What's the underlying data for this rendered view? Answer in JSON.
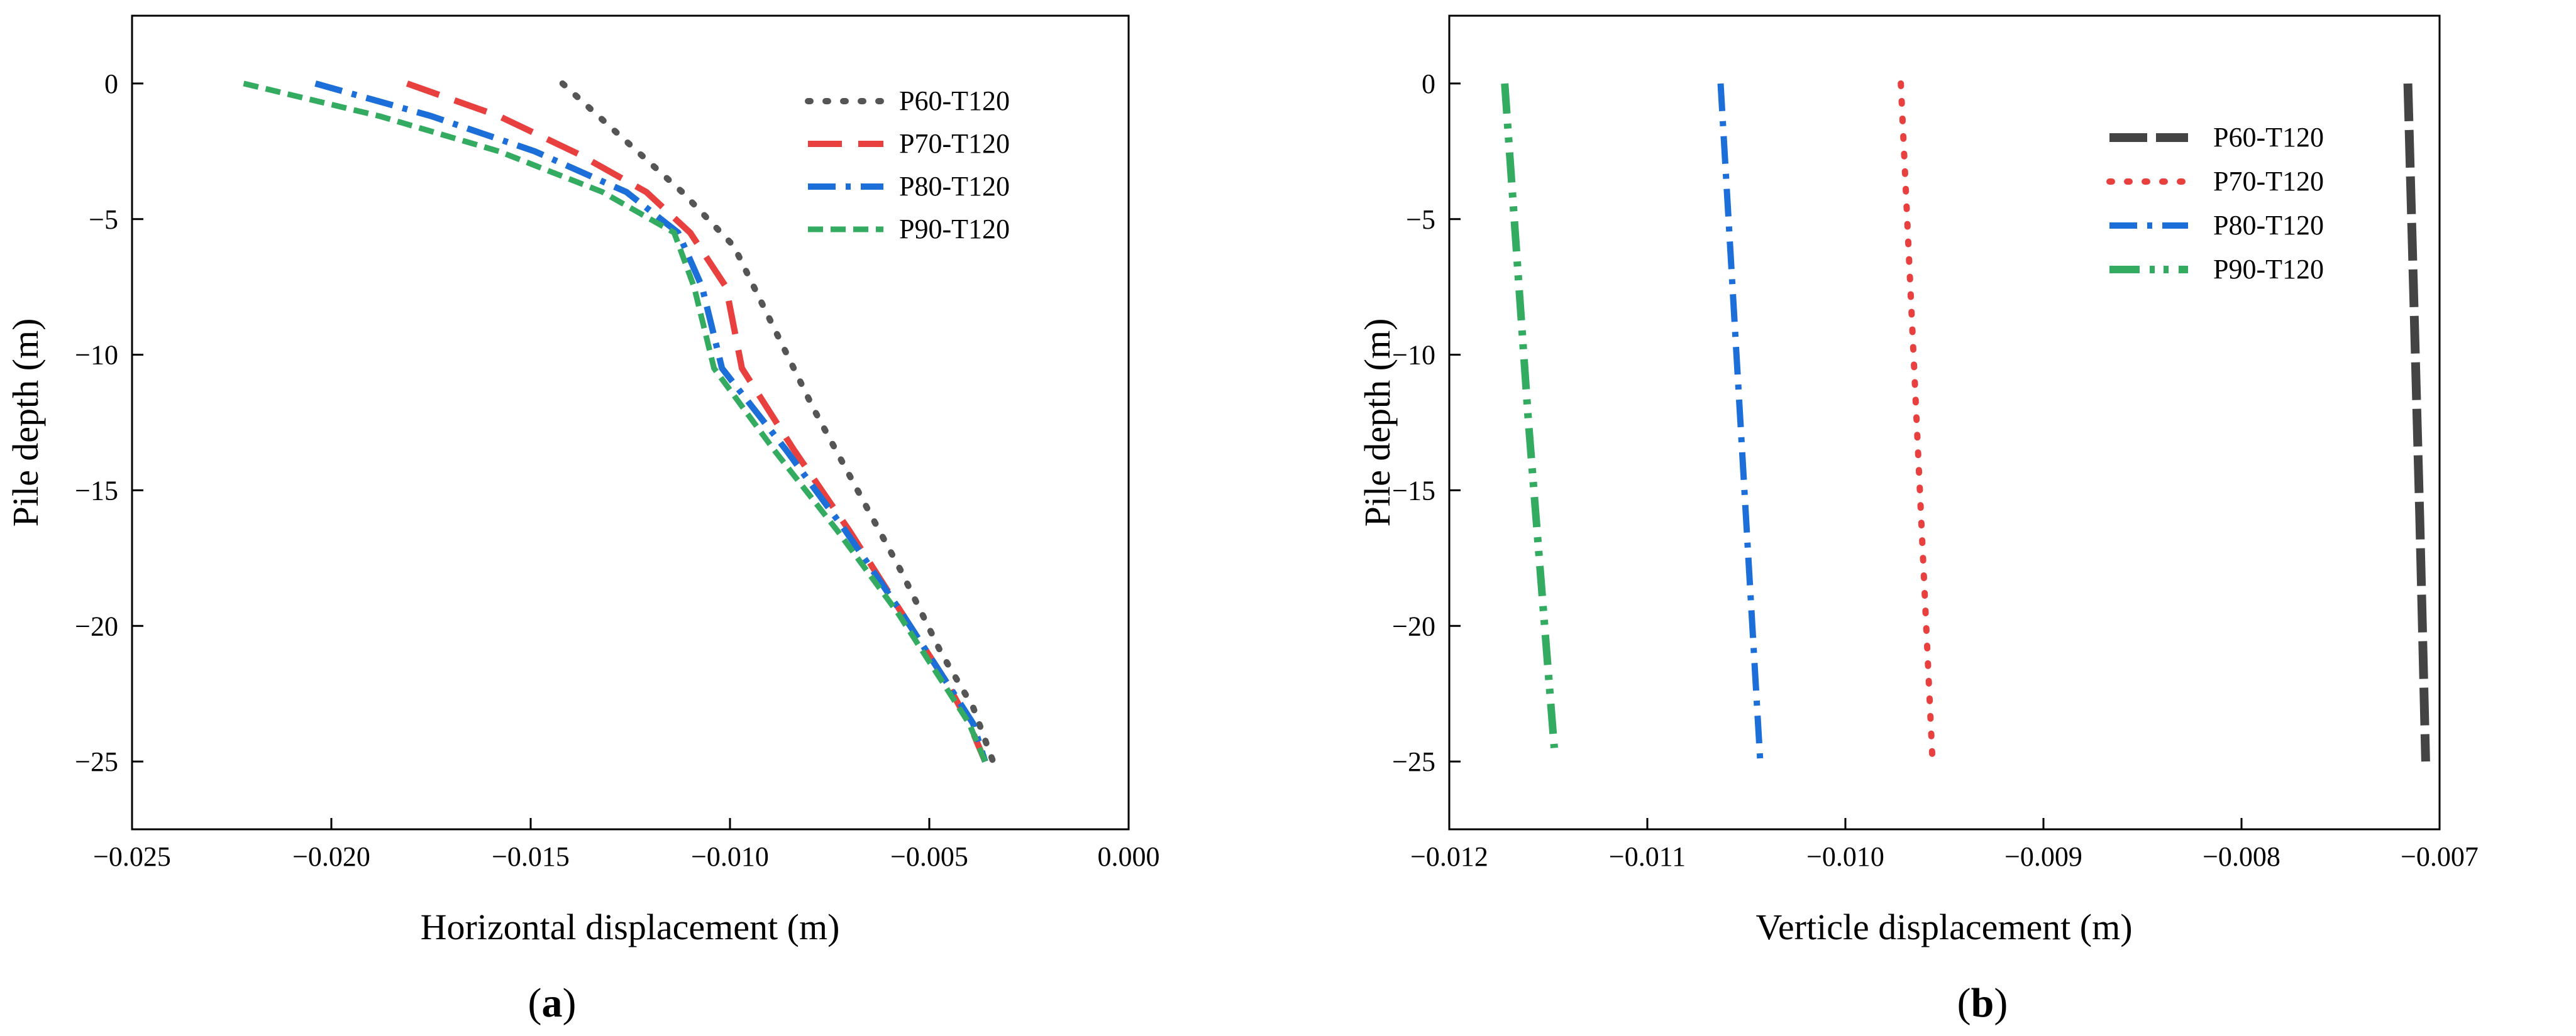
{
  "figure": {
    "panel_labels": [
      {
        "open": "(",
        "letter": "a",
        "close": ")"
      },
      {
        "open": "(",
        "letter": "b",
        "close": ")"
      }
    ]
  },
  "chart_data": [
    {
      "type": "line",
      "title": "",
      "xlabel": "Horizontal displacement (m)",
      "ylabel": "Pile depth (m)",
      "xlim": [
        -0.025,
        0.0
      ],
      "ylim": [
        -27.5,
        2.5
      ],
      "xticks": [
        -0.025,
        -0.02,
        -0.015,
        -0.01,
        -0.005,
        0.0
      ],
      "xtick_labels": [
        "−0.025",
        "−0.020",
        "−0.015",
        "−0.010",
        "−0.005",
        "0.000"
      ],
      "yticks": [
        0,
        -5,
        -10,
        -15,
        -20,
        -25
      ],
      "ytick_labels": [
        "0",
        "−5",
        "−10",
        "−15",
        "−20",
        "−25"
      ],
      "grid": false,
      "legend_position": "top-right",
      "series": [
        {
          "name": "P60-T120",
          "color": "#555555",
          "dash": "dot",
          "x": [
            -0.0142,
            -0.0127,
            -0.0112,
            -0.0099,
            -0.0089,
            -0.0079,
            -0.0068,
            -0.0057,
            -0.0047,
            -0.0039,
            -0.0034
          ],
          "y": [
            0,
            -2,
            -4,
            -6,
            -9,
            -12,
            -15,
            -18,
            -21,
            -23,
            -25
          ]
        },
        {
          "name": "P70-T120",
          "color": "#e8403f",
          "dash": "longdash",
          "x": [
            -0.0181,
            -0.0158,
            -0.0138,
            -0.0121,
            -0.011,
            -0.0101,
            -0.0097,
            -0.0084,
            -0.007,
            -0.0057,
            -0.0046,
            -0.004,
            -0.0036
          ],
          "y": [
            0,
            -1.2,
            -2.6,
            -4.0,
            -5.5,
            -7.5,
            -10.5,
            -13.5,
            -16.5,
            -19.5,
            -22.0,
            -23.6,
            -25
          ]
        },
        {
          "name": "P80-T120",
          "color": "#1c6fd8",
          "dash": "dashdot",
          "x": [
            -0.0204,
            -0.0175,
            -0.0149,
            -0.0126,
            -0.0113,
            -0.0107,
            -0.0102,
            -0.0086,
            -0.0071,
            -0.0057,
            -0.0046,
            -0.0039,
            -0.0036
          ],
          "y": [
            0,
            -1.2,
            -2.5,
            -4.0,
            -5.5,
            -7.5,
            -10.5,
            -13.5,
            -16.5,
            -19.5,
            -22.0,
            -23.6,
            -25
          ]
        },
        {
          "name": "P90-T120",
          "color": "#33ab60",
          "dash": "dash",
          "x": [
            -0.0222,
            -0.0188,
            -0.0158,
            -0.0132,
            -0.0114,
            -0.0109,
            -0.0104,
            -0.0089,
            -0.0073,
            -0.0058,
            -0.0047,
            -0.004,
            -0.0036
          ],
          "y": [
            0,
            -1.2,
            -2.5,
            -4.0,
            -5.5,
            -7.5,
            -10.5,
            -13.5,
            -16.5,
            -19.5,
            -22.0,
            -23.6,
            -25
          ]
        }
      ]
    },
    {
      "type": "line",
      "title": "",
      "xlabel": "Verticle displacement (m)",
      "ylabel": "Pile depth (m)",
      "xlim": [
        -0.012,
        -0.007
      ],
      "ylim": [
        -27.5,
        2.5
      ],
      "xticks": [
        -0.012,
        -0.011,
        -0.01,
        -0.009,
        -0.008,
        -0.007
      ],
      "xtick_labels": [
        "−0.012",
        "−0.011",
        "−0.010",
        "−0.009",
        "−0.008",
        "−0.007"
      ],
      "yticks": [
        0,
        -5,
        -10,
        -15,
        -20,
        -25
      ],
      "ytick_labels": [
        "0",
        "−5",
        "−10",
        "−15",
        "−20",
        "−25"
      ],
      "grid": false,
      "legend_position": "upper-center",
      "series": [
        {
          "name": "P60-T120",
          "color": "#444444",
          "dash": "heavydash",
          "x": [
            -0.00716,
            -0.00713,
            -0.0071,
            -0.00707
          ],
          "y": [
            0,
            -8,
            -16,
            -25
          ]
        },
        {
          "name": "P70-T120",
          "color": "#e8403f",
          "dash": "dot",
          "x": [
            -0.00972,
            -0.00964,
            -0.00956
          ],
          "y": [
            0,
            -12.5,
            -25
          ]
        },
        {
          "name": "P80-T120",
          "color": "#1c6fd8",
          "dash": "dashdot",
          "x": [
            -0.01063,
            -0.01053,
            -0.01043
          ],
          "y": [
            0,
            -12.5,
            -25
          ]
        },
        {
          "name": "P90-T120",
          "color": "#33ab60",
          "dash": "dashdotdot",
          "x": [
            -0.01172,
            -0.0116,
            -0.01147
          ],
          "y": [
            0,
            -12.5,
            -24.5
          ]
        }
      ]
    }
  ]
}
